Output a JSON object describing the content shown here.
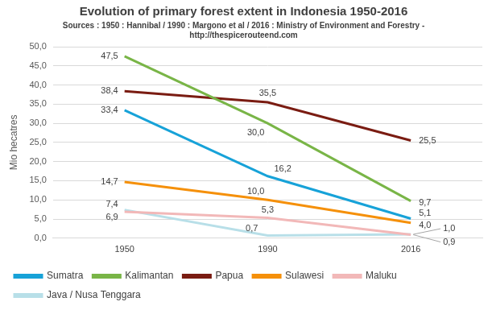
{
  "chart_data": {
    "type": "line",
    "title": "Evolution of primary forest extent in Indonesia 1950-2016",
    "subtitle": [
      "Sources : 1950 : Hannibal / 1990 : Margono et al / 2016 : Ministry of Environment and Forestry -",
      "http://thespicerouteend.com"
    ],
    "y_label": "Mio hecatres",
    "categories": [
      "1950",
      "1990",
      "2016"
    ],
    "series": [
      {
        "name": "Sumatra",
        "color": "#17a2d8",
        "values": [
          33.4,
          16.2,
          5.1
        ],
        "value_labels": [
          "33,4",
          "16,2",
          "5,1"
        ]
      },
      {
        "name": "Kalimantan",
        "color": "#79b547",
        "values": [
          47.5,
          30.0,
          9.7
        ],
        "value_labels": [
          "47,5",
          "30,0",
          "9,7"
        ]
      },
      {
        "name": "Papua",
        "color": "#7a1c12",
        "values": [
          38.4,
          35.5,
          25.5
        ],
        "value_labels": [
          "38,4",
          "35,5",
          "25,5"
        ]
      },
      {
        "name": "Sulawesi",
        "color": "#f5900a",
        "values": [
          14.7,
          10.0,
          4.0
        ],
        "value_labels": [
          "14,7",
          "10,0",
          "4,0"
        ]
      },
      {
        "name": "Maluku",
        "color": "#f2b8b8",
        "values": [
          6.9,
          5.3,
          0.9
        ],
        "value_labels": [
          "6,9",
          "5,3",
          "0,9"
        ]
      },
      {
        "name": "Java / Nusa Tenggara",
        "color": "#b8dfe8",
        "values": [
          7.4,
          0.7,
          1.0
        ],
        "value_labels": [
          "7,4",
          "0,7",
          "1,0"
        ]
      }
    ],
    "ylim": [
      0,
      50
    ],
    "yticks": [
      {
        "value": 0,
        "label": "0,0"
      },
      {
        "value": 5,
        "label": "5,0"
      },
      {
        "value": 10,
        "label": "10,0"
      },
      {
        "value": 15,
        "label": "15,0"
      },
      {
        "value": 20,
        "label": "20,0"
      },
      {
        "value": 25,
        "label": "25,0"
      },
      {
        "value": 30,
        "label": "30,0"
      },
      {
        "value": 35,
        "label": "35,0"
      },
      {
        "value": 40,
        "label": "40,0"
      },
      {
        "value": 45,
        "label": "45,0"
      },
      {
        "value": 50,
        "label": "50,0"
      }
    ],
    "grid": true,
    "legend": "bottom",
    "data_labels": true
  }
}
